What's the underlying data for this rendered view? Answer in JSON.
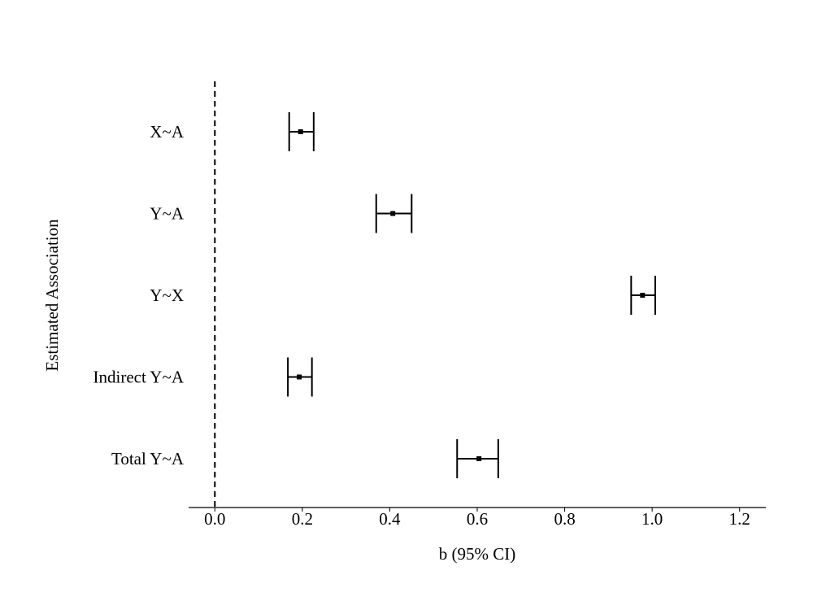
{
  "chart_data": {
    "type": "forest",
    "xlabel": "b (95% CI)",
    "ylabel": "Estimated Association",
    "categories": [
      "X~A",
      "Y~A",
      "Y~X",
      "Indirect Y~A",
      "Total Y~A"
    ],
    "values": [
      0.196,
      0.407,
      0.978,
      0.193,
      0.604
    ],
    "lower": [
      0.17,
      0.369,
      0.952,
      0.167,
      0.554
    ],
    "upper": [
      0.226,
      0.45,
      1.007,
      0.222,
      0.648
    ],
    "color": "#000000",
    "reference_line": 0,
    "xlim": [
      -0.06,
      1.26
    ],
    "xticks": [
      {
        "value": 0,
        "label": "0.0"
      },
      0.2,
      0.4,
      0.6,
      0.8,
      {
        "value": 1,
        "label": "1.0"
      },
      1.2
    ]
  }
}
